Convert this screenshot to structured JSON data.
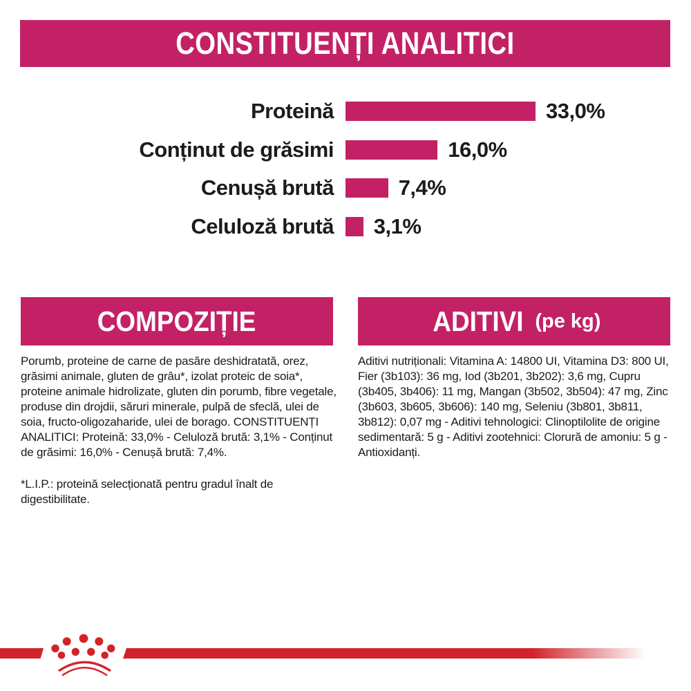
{
  "colors": {
    "magenta": "#c32166",
    "red": "#d2232a",
    "text": "#1b1b1b"
  },
  "header": {
    "title": "CONSTITUENȚI ANALITICI"
  },
  "chart_data": {
    "type": "bar",
    "orientation": "horizontal",
    "categories": [
      "Proteină",
      "Conținut de grăsimi",
      "Cenușă brută",
      "Celuloză brută"
    ],
    "values": [
      33.0,
      16.0,
      7.4,
      3.1
    ],
    "value_labels": [
      "33,0%",
      "16,0%",
      "7,4%",
      "3,1%"
    ],
    "unit": "%",
    "bar_color": "#c32166",
    "xlim": [
      0,
      33
    ],
    "grid": false,
    "legend": false
  },
  "sections": {
    "composition": {
      "title": "COMPOZIȚIE",
      "body": "Porumb, proteine de carne de pasăre deshidratată, orez, grăsimi animale, gluten de grâu*, izolat proteic de soia*, proteine animale hidrolizate, gluten din porumb, fibre vegetale, produse din drojdii, săruri minerale, pulpă de sfeclă, ulei de soia, fructo-oligozaharide, ulei de borago. CONSTITUENȚI ANALITICI: Proteină: 33,0% - Celuloză brută: 3,1% - Conținut de grăsimi: 16,0% - Cenușă brută: 7,4%.",
      "footnote": "*L.I.P.: proteină selecționată pentru gradul înalt de digestibilitate."
    },
    "additives": {
      "title": "ADITIVI",
      "title_suffix": "(pe kg)",
      "body": "Aditivi nutriționali: Vitamina A: 14800 UI, Vitamina D3: 800 UI, Fier (3b103): 36 mg, Iod (3b201, 3b202): 3,6 mg, Cupru (3b405, 3b406): 11 mg, Mangan (3b502, 3b504): 47 mg, Zinc (3b603, 3b605, 3b606): 140 mg, Seleniu (3b801, 3b811, 3b812): 0,07 mg - Aditivi tehnologici: Clinoptilolite de origine sedimentară: 5 g - Aditivi zootehnici: Clorură de amoniu: 5 g - Antioxidanți."
    }
  },
  "footer": {
    "logo_icon": "crown-paw-logo"
  }
}
